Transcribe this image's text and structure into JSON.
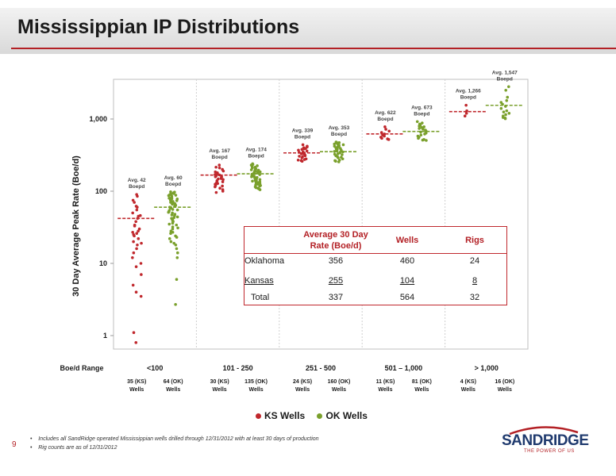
{
  "page": {
    "title": "Mississippian IP Distributions",
    "page_number": "9",
    "footnotes": [
      "Includes all SandRidge operated Mississippian wells drilled through 12/31/2012 with at least 30 days of production",
      "Rig counts are as of 12/31/2012"
    ],
    "logo_text": "SANDRIDGE",
    "logo_tagline": "THE POWER OF US"
  },
  "colors": {
    "ks": "#c0282d",
    "ok": "#7aa02c",
    "accent": "#b32025"
  },
  "chart_data": {
    "type": "scatter",
    "title": "Mississippian IP Distributions",
    "ylabel": "30 Day Average Peak Rate (Boe/d)",
    "xlabel": "Boe/d Range",
    "yscale": "log",
    "ylim": [
      0.8,
      1800
    ],
    "yticks": [
      {
        "value": 1,
        "label": "1"
      },
      {
        "value": 10,
        "label": "10"
      },
      {
        "value": 100,
        "label": "100"
      },
      {
        "value": 1000,
        "label": "1,000"
      }
    ],
    "groups": [
      {
        "range": "<100",
        "entries": [
          {
            "series": "KS",
            "wells": "35 (KS)",
            "wells_label": "Wells",
            "avg": 42,
            "avg_label": "Avg. 42",
            "avg_unit": "Boepd"
          },
          {
            "series": "OK",
            "wells": "64 (OK)",
            "wells_label": "Wells",
            "avg": 60,
            "avg_label": "Avg. 60",
            "avg_unit": "Boepd"
          }
        ]
      },
      {
        "range": "101 - 250",
        "entries": [
          {
            "series": "KS",
            "wells": "30 (KS)",
            "wells_label": "Wells",
            "avg": 167,
            "avg_label": "Avg. 167",
            "avg_unit": "Boepd"
          },
          {
            "series": "OK",
            "wells": "135 (OK)",
            "wells_label": "Wells",
            "avg": 174,
            "avg_label": "Avg. 174",
            "avg_unit": "Boepd"
          }
        ]
      },
      {
        "range": "251 - 500",
        "entries": [
          {
            "series": "KS",
            "wells": "24 (KS)",
            "wells_label": "Wells",
            "avg": 339,
            "avg_label": "Avg. 339",
            "avg_unit": "Boepd"
          },
          {
            "series": "OK",
            "wells": "160 (OK)",
            "wells_label": "Wells",
            "avg": 353,
            "avg_label": "Avg. 353",
            "avg_unit": "Boepd"
          }
        ]
      },
      {
        "range": "501 – 1,000",
        "entries": [
          {
            "series": "KS",
            "wells": "11 (KS)",
            "wells_label": "Wells",
            "avg": 622,
            "avg_label": "Avg. 622",
            "avg_unit": "Boepd"
          },
          {
            "series": "OK",
            "wells": "81 (OK)",
            "wells_label": "Wells",
            "avg": 673,
            "avg_label": "Avg. 673",
            "avg_unit": "Boepd"
          }
        ]
      },
      {
        "range": "> 1,000",
        "entries": [
          {
            "series": "KS",
            "wells": "4 (KS)",
            "wells_label": "Wells",
            "avg": 1266,
            "avg_label": "Avg. 1,266",
            "avg_unit": "Boepd"
          },
          {
            "series": "OK",
            "wells": "16 (OK)",
            "wells_label": "Wells",
            "avg": 1547,
            "avg_label": "Avg. 1,547",
            "avg_unit": "Boepd"
          }
        ]
      }
    ],
    "points": {
      "KS": [
        [
          90,
          85,
          75,
          70,
          62,
          55,
          50,
          46,
          42,
          38,
          34,
          30,
          28,
          27,
          26,
          24,
          22,
          20,
          18,
          16,
          14,
          12,
          10,
          7,
          5,
          4,
          3.5,
          1.1,
          0.8,
          60,
          45,
          33,
          25,
          19,
          9
        ],
        [
          230,
          215,
          200,
          190,
          180,
          170,
          165,
          160,
          155,
          150,
          145,
          140,
          135,
          130,
          125,
          120,
          115,
          110,
          105,
          100,
          96,
          210,
          185,
          175,
          168,
          158,
          148,
          138,
          128,
          118
        ],
        [
          440,
          420,
          400,
          390,
          380,
          370,
          360,
          350,
          340,
          330,
          320,
          310,
          300,
          290,
          280,
          275,
          270,
          265,
          260,
          410,
          385,
          345,
          325,
          305
        ],
        [
          780,
          720,
          680,
          650,
          620,
          600,
          580,
          560,
          540,
          530,
          520
        ],
        [
          1550,
          1300,
          1200,
          1100
        ]
      ],
      "OK": [
        [
          98,
          95,
          92,
          90,
          88,
          85,
          82,
          80,
          78,
          76,
          74,
          72,
          70,
          68,
          66,
          64,
          62,
          60,
          58,
          56,
          54,
          52,
          50,
          48,
          46,
          44,
          42,
          40,
          38,
          36,
          34,
          32,
          30,
          28,
          26,
          24,
          22,
          20,
          18,
          16,
          14,
          12,
          6,
          2.7,
          97,
          93,
          87,
          83,
          79,
          75,
          71,
          67,
          63,
          59,
          55,
          51,
          47,
          43,
          39,
          35,
          31,
          27,
          23,
          19
        ],
        [
          240,
          235,
          230,
          225,
          220,
          215,
          210,
          205,
          200,
          198,
          195,
          192,
          190,
          188,
          185,
          182,
          180,
          178,
          175,
          172,
          170,
          168,
          165,
          162,
          160,
          158,
          155,
          152,
          150,
          148,
          145,
          142,
          140,
          138,
          135,
          132,
          130,
          128,
          125,
          122,
          120,
          118,
          115,
          112,
          110,
          108,
          105
        ],
        [
          480,
          470,
          460,
          450,
          440,
          430,
          420,
          410,
          400,
          390,
          380,
          370,
          360,
          350,
          340,
          330,
          320,
          310,
          300,
          290,
          280,
          270,
          265,
          260,
          255,
          475,
          445,
          415,
          385,
          355,
          325,
          295
        ],
        [
          920,
          880,
          850,
          820,
          800,
          780,
          760,
          740,
          720,
          700,
          680,
          660,
          640,
          620,
          600,
          580,
          560,
          540,
          520,
          510,
          505
        ],
        [
          2800,
          2500,
          2000,
          1800,
          1600,
          1500,
          1400,
          1300,
          1200,
          1150,
          1100,
          1050,
          1030,
          1010,
          1700,
          1250
        ]
      ]
    },
    "legend": [
      {
        "series": "KS",
        "label": "KS Wells"
      },
      {
        "series": "OK",
        "label": "OK Wells"
      }
    ],
    "legend_position": "bottom-center"
  },
  "summary_table": {
    "headers": {
      "rate_line1": "Average 30 Day",
      "rate_line2": "Rate (Boe/d)",
      "wells": "Wells",
      "rigs": "Rigs"
    },
    "rows": [
      {
        "name": "Oklahoma",
        "rate": "356",
        "wells": "460",
        "rigs": "24"
      },
      {
        "name": "Kansas",
        "rate": "255",
        "wells": "104",
        "rigs": "8"
      },
      {
        "name": "Total",
        "rate": "337",
        "wells": "564",
        "rigs": "32"
      }
    ]
  }
}
